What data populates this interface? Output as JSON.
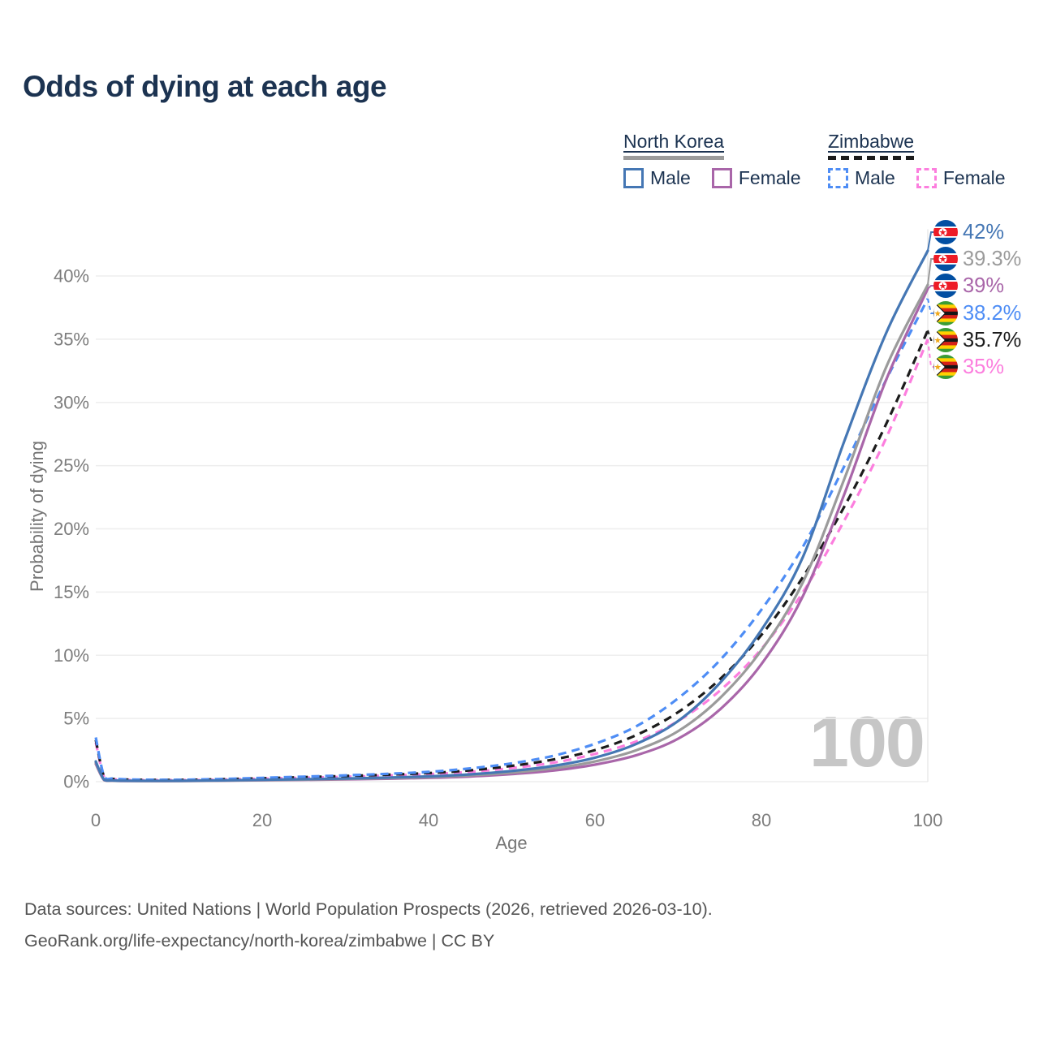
{
  "title": "Odds of dying at each age",
  "legend": {
    "groups": [
      {
        "label": "North Korea",
        "line_style": "solid",
        "line_color": "#9b9b9b",
        "items": [
          {
            "label": "Male",
            "color": "#4577b4",
            "style": "solid"
          },
          {
            "label": "Female",
            "color": "#a966a9",
            "style": "solid"
          }
        ]
      },
      {
        "label": "Zimbabwe",
        "line_style": "dashed",
        "line_color": "#1c1c1c",
        "items": [
          {
            "label": "Male",
            "color": "#4e8df5",
            "style": "dashed"
          },
          {
            "label": "Female",
            "color": "#fc7ede",
            "style": "dashed"
          }
        ]
      }
    ]
  },
  "chart_data": {
    "type": "line",
    "title": "Odds of dying at each age",
    "xlabel": "Age",
    "ylabel": "Probability of dying",
    "xlim": [
      0,
      100
    ],
    "ylim": [
      0,
      43.5
    ],
    "x_ticks": [
      "0",
      "20",
      "40",
      "60",
      "80",
      "100"
    ],
    "y_ticks": [
      "0%",
      "5%",
      "10%",
      "15%",
      "20%",
      "25%",
      "30%",
      "35%",
      "40%"
    ],
    "grid": "horizontal-only",
    "legend_position": "top-right",
    "watermark_age_label": "100",
    "series": [
      {
        "name": "North Korea Male",
        "country": "north-korea",
        "sex": "male",
        "color": "#4577b4",
        "style": "solid",
        "end_label": "42%",
        "points": [
          [
            0,
            1.6
          ],
          [
            1,
            0.16
          ],
          [
            2,
            0.1
          ],
          [
            3,
            0.08
          ],
          [
            5,
            0.07
          ],
          [
            10,
            0.07
          ],
          [
            15,
            0.1
          ],
          [
            20,
            0.15
          ],
          [
            25,
            0.2
          ],
          [
            30,
            0.25
          ],
          [
            35,
            0.32
          ],
          [
            40,
            0.42
          ],
          [
            45,
            0.58
          ],
          [
            50,
            0.85
          ],
          [
            55,
            1.25
          ],
          [
            60,
            1.9
          ],
          [
            65,
            3.0
          ],
          [
            70,
            4.8
          ],
          [
            75,
            7.8
          ],
          [
            80,
            12.0
          ],
          [
            85,
            17.8
          ],
          [
            90,
            27.0
          ],
          [
            95,
            35.5
          ],
          [
            100,
            42.0
          ]
        ]
      },
      {
        "name": "North Korea Both sexes",
        "country": "north-korea",
        "sex": "both",
        "color": "#9b9b9b",
        "style": "solid",
        "end_label": "39.3%",
        "points": [
          [
            0,
            1.5
          ],
          [
            1,
            0.14
          ],
          [
            2,
            0.09
          ],
          [
            3,
            0.07
          ],
          [
            5,
            0.06
          ],
          [
            10,
            0.06
          ],
          [
            15,
            0.09
          ],
          [
            20,
            0.13
          ],
          [
            25,
            0.17
          ],
          [
            30,
            0.22
          ],
          [
            35,
            0.28
          ],
          [
            40,
            0.36
          ],
          [
            45,
            0.5
          ],
          [
            50,
            0.72
          ],
          [
            55,
            1.05
          ],
          [
            60,
            1.6
          ],
          [
            65,
            2.5
          ],
          [
            70,
            4.0
          ],
          [
            75,
            6.6
          ],
          [
            80,
            10.4
          ],
          [
            85,
            15.8
          ],
          [
            90,
            24.0
          ],
          [
            95,
            32.8
          ],
          [
            100,
            39.3
          ]
        ]
      },
      {
        "name": "North Korea Female",
        "country": "north-korea",
        "sex": "female",
        "color": "#a966a9",
        "style": "solid",
        "end_label": "39%",
        "points": [
          [
            0,
            1.4
          ],
          [
            1,
            0.12
          ],
          [
            2,
            0.08
          ],
          [
            3,
            0.06
          ],
          [
            5,
            0.05
          ],
          [
            10,
            0.05
          ],
          [
            15,
            0.08
          ],
          [
            20,
            0.11
          ],
          [
            25,
            0.14
          ],
          [
            30,
            0.18
          ],
          [
            35,
            0.23
          ],
          [
            40,
            0.3
          ],
          [
            45,
            0.41
          ],
          [
            50,
            0.6
          ],
          [
            55,
            0.88
          ],
          [
            60,
            1.35
          ],
          [
            65,
            2.1
          ],
          [
            70,
            3.4
          ],
          [
            75,
            5.7
          ],
          [
            80,
            9.3
          ],
          [
            85,
            14.7
          ],
          [
            90,
            22.8
          ],
          [
            95,
            31.8
          ],
          [
            100,
            39.0
          ]
        ]
      },
      {
        "name": "Zimbabwe Male",
        "country": "zimbabwe",
        "sex": "male",
        "color": "#4e8df5",
        "style": "dashed",
        "end_label": "38.2%",
        "points": [
          [
            0,
            3.5
          ],
          [
            1,
            0.42
          ],
          [
            2,
            0.25
          ],
          [
            3,
            0.2
          ],
          [
            5,
            0.16
          ],
          [
            10,
            0.15
          ],
          [
            15,
            0.21
          ],
          [
            20,
            0.3
          ],
          [
            25,
            0.4
          ],
          [
            30,
            0.5
          ],
          [
            35,
            0.62
          ],
          [
            40,
            0.78
          ],
          [
            45,
            1.05
          ],
          [
            50,
            1.45
          ],
          [
            55,
            2.05
          ],
          [
            60,
            3.0
          ],
          [
            65,
            4.4
          ],
          [
            70,
            6.6
          ],
          [
            75,
            9.6
          ],
          [
            80,
            13.6
          ],
          [
            85,
            18.6
          ],
          [
            90,
            25.0
          ],
          [
            95,
            31.8
          ],
          [
            100,
            38.2
          ]
        ]
      },
      {
        "name": "Zimbabwe Both sexes",
        "country": "zimbabwe",
        "sex": "both",
        "color": "#1c1c1c",
        "style": "dashed",
        "end_label": "35.7%",
        "points": [
          [
            0,
            3.3
          ],
          [
            1,
            0.38
          ],
          [
            2,
            0.23
          ],
          [
            3,
            0.18
          ],
          [
            5,
            0.15
          ],
          [
            10,
            0.14
          ],
          [
            15,
            0.19
          ],
          [
            20,
            0.27
          ],
          [
            25,
            0.36
          ],
          [
            30,
            0.45
          ],
          [
            35,
            0.55
          ],
          [
            40,
            0.68
          ],
          [
            45,
            0.9
          ],
          [
            50,
            1.25
          ],
          [
            55,
            1.75
          ],
          [
            60,
            2.5
          ],
          [
            65,
            3.7
          ],
          [
            70,
            5.5
          ],
          [
            75,
            8.1
          ],
          [
            80,
            11.6
          ],
          [
            85,
            16.2
          ],
          [
            90,
            21.8
          ],
          [
            95,
            28.3
          ],
          [
            100,
            35.7
          ]
        ]
      },
      {
        "name": "Zimbabwe Female",
        "country": "zimbabwe",
        "sex": "female",
        "color": "#fc7ede",
        "style": "dashed",
        "end_label": "35%",
        "points": [
          [
            0,
            3.1
          ],
          [
            1,
            0.35
          ],
          [
            2,
            0.21
          ],
          [
            3,
            0.16
          ],
          [
            5,
            0.13
          ],
          [
            10,
            0.12
          ],
          [
            15,
            0.17
          ],
          [
            20,
            0.24
          ],
          [
            25,
            0.31
          ],
          [
            30,
            0.39
          ],
          [
            35,
            0.48
          ],
          [
            40,
            0.6
          ],
          [
            45,
            0.78
          ],
          [
            50,
            1.08
          ],
          [
            55,
            1.5
          ],
          [
            60,
            2.2
          ],
          [
            65,
            3.2
          ],
          [
            70,
            4.8
          ],
          [
            75,
            7.2
          ],
          [
            80,
            10.5
          ],
          [
            85,
            15.0
          ],
          [
            90,
            20.7
          ],
          [
            95,
            27.2
          ],
          [
            100,
            35.0
          ]
        ]
      }
    ]
  },
  "footer": {
    "line1": "Data sources: United Nations | World Population Prospects (2026, retrieved 2026-03-10).",
    "line2": "GeoRank.org/life-expectancy/north-korea/zimbabwe | CC BY"
  }
}
